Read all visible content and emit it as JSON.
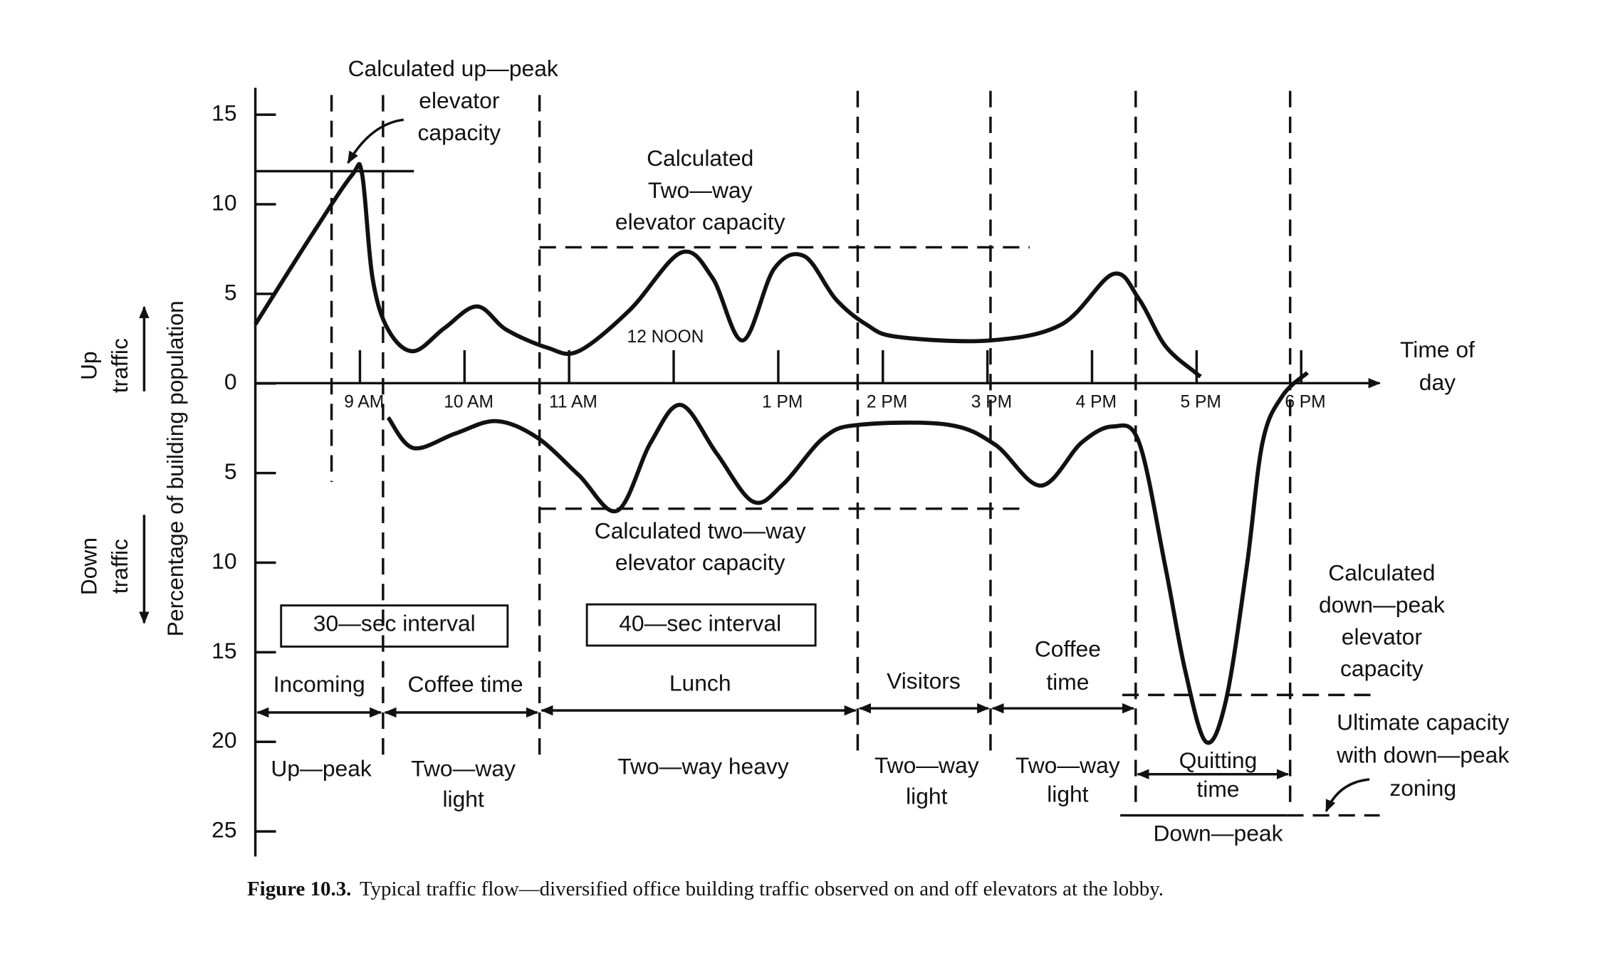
{
  "chart_data": {
    "type": "line",
    "ylabel": "Percentage of building population",
    "up_label": [
      "Up",
      "traffic"
    ],
    "down_label": [
      "Down",
      "traffic"
    ],
    "xlabel": [
      "Time of",
      "day"
    ],
    "xlim": [
      8,
      18.8
    ],
    "ylim": [
      -26.4,
      16.5
    ],
    "xticks": [
      {
        "value": 9,
        "label": "9 AM"
      },
      {
        "value": 10,
        "label": "10 AM"
      },
      {
        "value": 11,
        "label": "11 AM"
      },
      {
        "value": 12,
        "label": "12 NOON"
      },
      {
        "value": 13,
        "label": "1 PM"
      },
      {
        "value": 14,
        "label": "2 PM"
      },
      {
        "value": 15,
        "label": "3 PM"
      },
      {
        "value": 16,
        "label": "4 PM"
      },
      {
        "value": 17,
        "label": "5 PM"
      },
      {
        "value": 18,
        "label": "6 PM"
      }
    ],
    "yticks": [
      15,
      10,
      5,
      0,
      {
        "value": -5,
        "label": "5"
      },
      {
        "value": -10,
        "label": "10"
      },
      {
        "value": -15,
        "label": "15"
      },
      {
        "value": -20,
        "label": "20"
      },
      {
        "value": -25,
        "label": "25"
      }
    ],
    "series": [
      {
        "color": "#111111",
        "x": [
          8.0,
          8.53,
          8.92,
          9.02,
          9.12,
          9.27,
          9.51,
          9.81,
          10.12,
          10.4,
          10.79,
          11.09,
          11.58,
          12.07,
          12.37,
          12.66,
          12.96,
          13.25,
          13.55,
          13.84,
          14.14,
          15.02,
          15.71,
          16.2,
          16.45,
          16.7,
          16.99,
          17.04
        ],
        "values": [
          3.3,
          8.2,
          11.6,
          11.7,
          5.9,
          3.0,
          1.8,
          3.1,
          4.3,
          3.0,
          2.0,
          1.8,
          4.1,
          7.3,
          5.9,
          2.4,
          6.4,
          7.1,
          4.7,
          3.3,
          2.6,
          2.4,
          3.3,
          6.1,
          4.7,
          2.1,
          0.6,
          0.4
        ]
      },
      {
        "color": "#111111",
        "x": [
          9.27,
          9.51,
          9.91,
          10.3,
          10.69,
          11.09,
          11.46,
          11.78,
          12.07,
          12.41,
          12.76,
          13.05,
          13.44,
          13.79,
          14.62,
          15.07,
          15.51,
          15.9,
          16.2,
          16.45,
          16.7,
          16.89,
          17.09,
          17.28,
          17.48,
          17.63,
          17.82,
          18.06
        ],
        "values": [
          -1.9,
          -3.6,
          -2.8,
          -2.1,
          -3.0,
          -5.1,
          -7.1,
          -3.3,
          -1.2,
          -3.9,
          -6.6,
          -5.6,
          -3.0,
          -2.3,
          -2.3,
          -3.4,
          -5.7,
          -3.3,
          -2.4,
          -3.3,
          -10.2,
          -16.0,
          -20.0,
          -17.7,
          -10.2,
          -3.3,
          -0.7,
          0.6
        ]
      }
    ],
    "annotations": [
      [
        "Calculated up—peak",
        "elevator",
        "capacity"
      ],
      [
        "Calculated",
        "Two—way",
        "elevator capacity"
      ],
      [
        "Calculated two—way",
        "elevator capacity"
      ],
      [
        "30—sec interval"
      ],
      [
        "40—sec interval"
      ],
      [
        "Incoming"
      ],
      [
        "Coffee time"
      ],
      [
        "Lunch"
      ],
      [
        "Visitors"
      ],
      [
        "Coffee",
        "time"
      ],
      [
        "Up—peak"
      ],
      [
        "Two—way",
        "light"
      ],
      [
        "Two—way heavy"
      ],
      [
        "Two—way",
        "light"
      ],
      [
        "Two—way",
        "light"
      ],
      [
        "Quitting",
        "time"
      ],
      [
        "Down—peak"
      ],
      [
        "Calculated",
        "down—peak",
        "elevator",
        "capacity"
      ],
      [
        "Ultimate capacity",
        "with down—peak",
        "zoning"
      ]
    ],
    "caption": {
      "label": "Figure 10.3.",
      "text": "Typical traffic flow—diversified office building traffic observed on and off elevators at the lobby."
    }
  }
}
